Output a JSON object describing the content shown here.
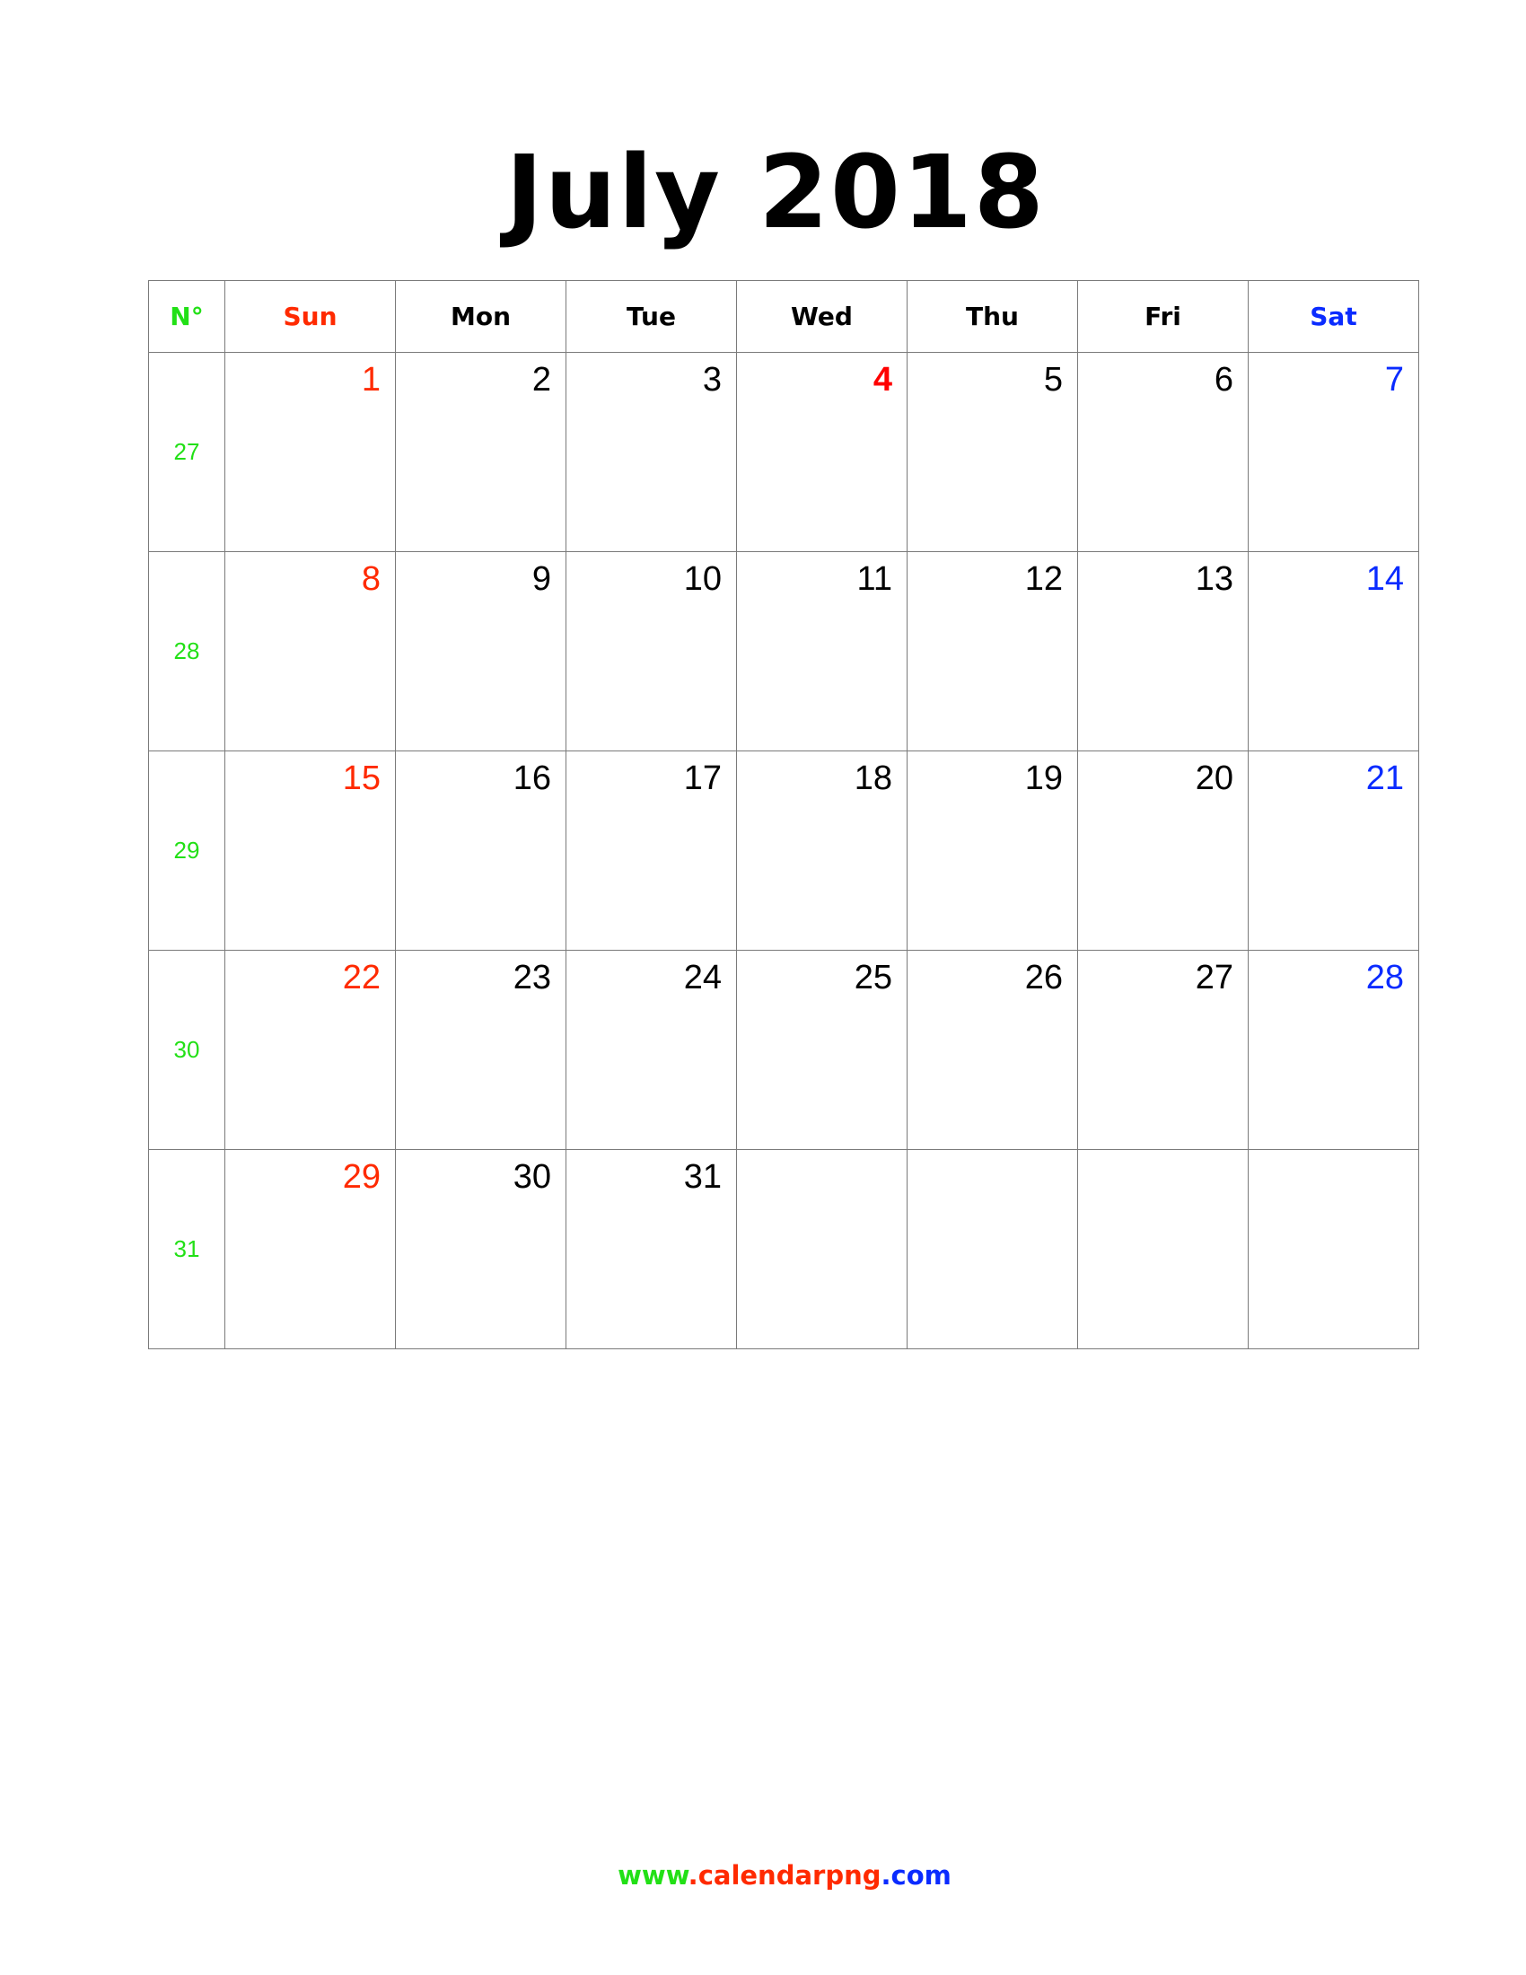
{
  "title": "July 2018",
  "headers": {
    "week_no": "N°",
    "days": [
      "Sun",
      "Mon",
      "Tue",
      "Wed",
      "Thu",
      "Fri",
      "Sat"
    ]
  },
  "weeks": [
    {
      "number": "27",
      "days": [
        "1",
        "2",
        "3",
        "4",
        "5",
        "6",
        "7"
      ]
    },
    {
      "number": "28",
      "days": [
        "8",
        "9",
        "10",
        "11",
        "12",
        "13",
        "14"
      ]
    },
    {
      "number": "29",
      "days": [
        "15",
        "16",
        "17",
        "18",
        "19",
        "20",
        "21"
      ]
    },
    {
      "number": "30",
      "days": [
        "22",
        "23",
        "24",
        "25",
        "26",
        "27",
        "28"
      ]
    },
    {
      "number": "31",
      "days": [
        "29",
        "30",
        "31",
        "",
        "",
        "",
        ""
      ]
    }
  ],
  "holiday": "4",
  "footer": {
    "part1": "www",
    "part2": ".calendarpng",
    "part3": ".com"
  },
  "colors": {
    "sunday": "#ff2a00",
    "saturday": "#0a2bff",
    "week_number": "#22e016",
    "holiday": "#ff0000"
  }
}
